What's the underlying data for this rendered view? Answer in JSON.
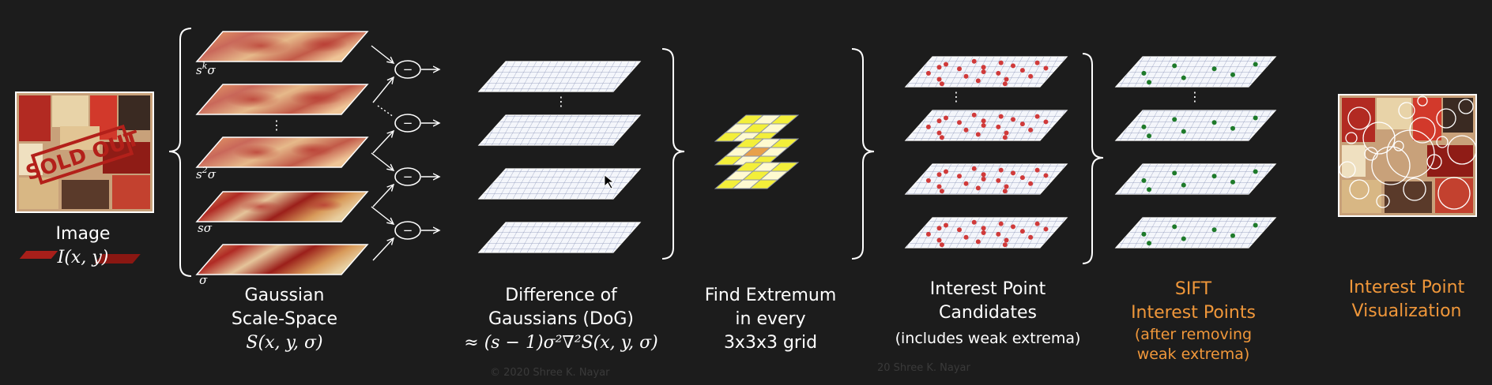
{
  "colors": {
    "background": "#1c1c1c",
    "text": "#ffffff",
    "accent": "#f0973a",
    "grid_line": "#6a78a0",
    "layer_fill": "#f4f6fb",
    "red_dot": "#d03a3a",
    "green_dot": "#1e7a2a",
    "yellow_cell": "#f3ef3a"
  },
  "scale_labels": [
    "s^kσ",
    "s²σ",
    "sσ",
    "σ"
  ],
  "image": {
    "title": "Image",
    "formula": "I(x, y)",
    "poster_text": "SOLD OUT"
  },
  "gaussian": {
    "title1": "Gaussian",
    "title2": "Scale-Space",
    "formula": "S(x, y, σ)"
  },
  "dog": {
    "title1": "Difference of",
    "title2": "Gaussians (DoG)",
    "formula": "≈ (s − 1)σ²∇²S(x, y, σ)",
    "minus_sign": "−",
    "ellipsis": "⋮"
  },
  "extremum": {
    "line1": "Find Extremum",
    "line2": "in every",
    "line3": "3x3x3 grid"
  },
  "candidates": {
    "title1": "Interest Point",
    "title2": "Candidates",
    "note": "(includes weak extrema)"
  },
  "sift": {
    "title1": "SIFT",
    "title2": "Interest Points",
    "note1": "(after removing",
    "note2": "weak extrema)"
  },
  "visualization": {
    "title1": "Interest Point",
    "title2": "Visualization"
  },
  "watermarks": [
    "© 2020 Shree K. Nayar",
    "20 Shree K. Nayar"
  ]
}
